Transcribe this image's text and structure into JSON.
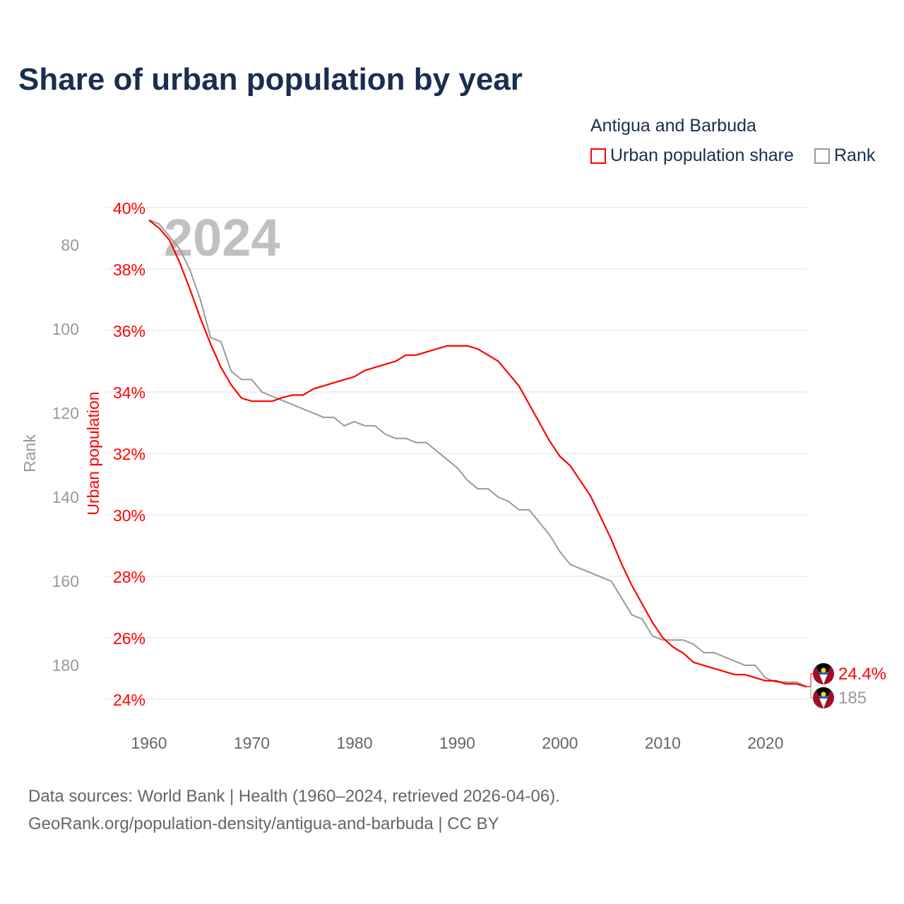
{
  "title": "Share of urban population by year",
  "legend": {
    "title": "Antigua and Barbuda",
    "items": [
      {
        "label": "Urban population share",
        "color": "#ff0000"
      },
      {
        "label": "Rank",
        "color": "#999999"
      }
    ]
  },
  "footer": {
    "line1": "Data sources: World Bank | Health (1960–2024, retrieved 2026-04-06).",
    "line2": "GeoRank.org/population-density/antigua-and-barbuda | CC BY"
  },
  "chart_data": {
    "type": "line",
    "title": "Share of urban population by year",
    "year_label": "2024",
    "xlabel": "",
    "ylabel": "Urban population",
    "y2label": "Rank",
    "xlim": [
      1960,
      2024
    ],
    "ylim": [
      24,
      40
    ],
    "y2lim": [
      71,
      188
    ],
    "x_ticks": [
      "1960",
      "1970",
      "1980",
      "1990",
      "2000",
      "2010",
      "2020"
    ],
    "y_ticks": [
      "40%",
      "38%",
      "36%",
      "34%",
      "32%",
      "30%",
      "28%",
      "26%",
      "24%"
    ],
    "y2_ticks": [
      "80",
      "100",
      "120",
      "140",
      "160",
      "180"
    ],
    "end_labels": {
      "share": "24.4%",
      "rank": "185"
    },
    "x": [
      1960,
      1961,
      1962,
      1963,
      1964,
      1965,
      1966,
      1967,
      1968,
      1969,
      1970,
      1971,
      1972,
      1973,
      1974,
      1975,
      1976,
      1977,
      1978,
      1979,
      1980,
      1981,
      1982,
      1983,
      1984,
      1985,
      1986,
      1987,
      1988,
      1989,
      1990,
      1991,
      1992,
      1993,
      1994,
      1995,
      1996,
      1997,
      1998,
      1999,
      2000,
      2001,
      2002,
      2003,
      2004,
      2005,
      2006,
      2007,
      2008,
      2009,
      2010,
      2011,
      2012,
      2013,
      2014,
      2015,
      2016,
      2017,
      2018,
      2019,
      2020,
      2021,
      2022,
      2023,
      2024
    ],
    "series": [
      {
        "name": "Urban population share",
        "color": "#ff0000",
        "values": [
          39.59,
          39.33,
          38.94,
          38.2,
          37.33,
          36.4,
          35.56,
          34.8,
          34.23,
          33.8,
          33.7,
          33.7,
          33.7,
          33.82,
          33.9,
          33.9,
          34.1,
          34.2,
          34.3,
          34.4,
          34.5,
          34.7,
          34.8,
          34.9,
          35.0,
          35.2,
          35.2,
          35.3,
          35.4,
          35.5,
          35.5,
          35.5,
          35.4,
          35.2,
          35.0,
          34.6,
          34.2,
          33.6,
          33.0,
          32.4,
          31.9,
          31.6,
          31.1,
          30.6,
          29.9,
          29.2,
          28.4,
          27.7,
          27.1,
          26.5,
          26.0,
          25.7,
          25.5,
          25.2,
          25.1,
          25.0,
          24.9,
          24.8,
          24.8,
          24.7,
          24.6,
          24.6,
          24.5,
          24.5,
          24.4
        ]
      },
      {
        "name": "Rank",
        "color": "#999999",
        "values": [
          74,
          75,
          78,
          81,
          86,
          93,
          102,
          103,
          110,
          112,
          112,
          115,
          116,
          117,
          118,
          119,
          120,
          121,
          121,
          123,
          122,
          123,
          123,
          125,
          126,
          126,
          127,
          127,
          129,
          131,
          133,
          136,
          138,
          138,
          140,
          141,
          143,
          143,
          146,
          149,
          153,
          156,
          157,
          158,
          159,
          160,
          164,
          168,
          169,
          173,
          174,
          174,
          174,
          175,
          177,
          177,
          178,
          179,
          180,
          180,
          183,
          184,
          184,
          184,
          185
        ]
      }
    ]
  }
}
